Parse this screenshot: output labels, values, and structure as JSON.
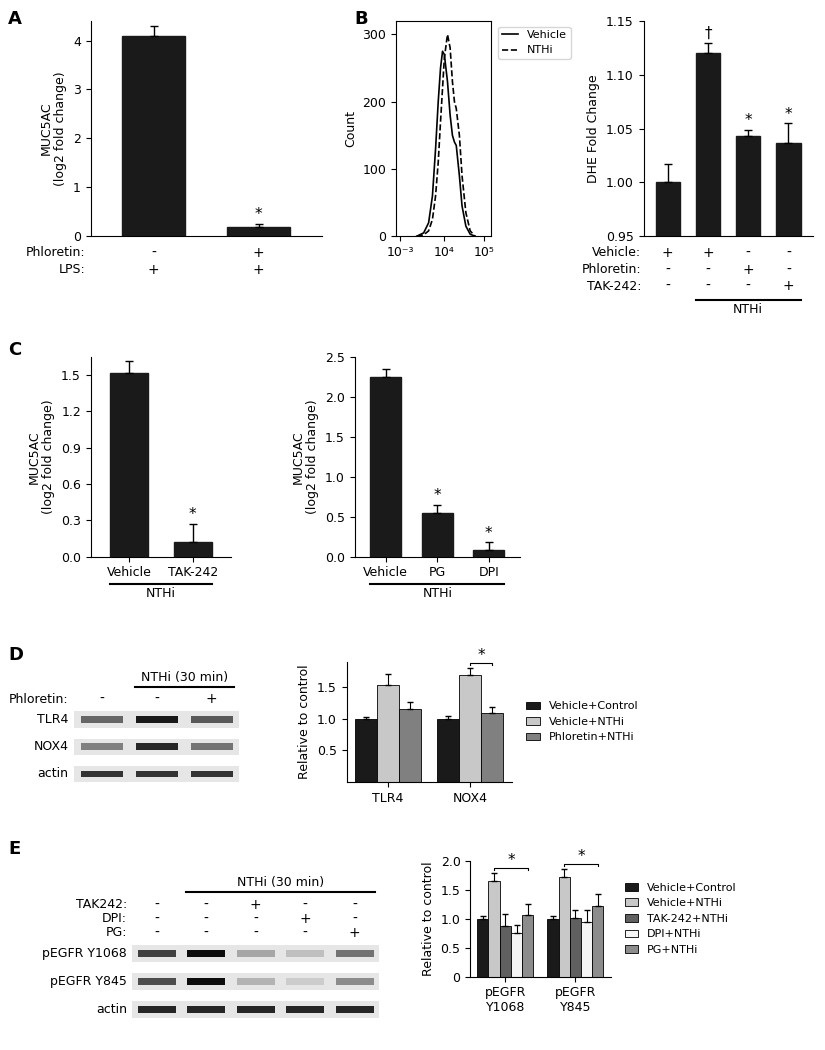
{
  "chart_data": [
    {
      "panel": "A",
      "type": "bar",
      "y_label": "MUC5AC\n(log2 fold change)",
      "values": [
        4.1,
        0.18
      ],
      "errors": [
        0.2,
        0.08
      ],
      "significance": [
        null,
        "*"
      ],
      "color": "#1a1a1a",
      "treatments": [
        {
          "name": "Phloretin:",
          "signs": [
            "-",
            "+"
          ]
        },
        {
          "name": "LPS:",
          "signs": [
            "+",
            "+"
          ]
        }
      ],
      "ylim": [
        0,
        4.4
      ],
      "yticks": [
        0,
        1,
        2,
        3,
        4
      ]
    },
    {
      "panel": "B",
      "type": "line",
      "y_label": "Count",
      "x": [
        2000,
        3000,
        4000,
        5000,
        6000,
        7000,
        8000,
        9000,
        10000,
        12000,
        14000,
        16000,
        18000,
        20000,
        24000,
        28000,
        35000,
        45000,
        60000
      ],
      "series": [
        {
          "name": "Vehicle",
          "color": "#000000",
          "line_style": "solid",
          "values": [
            0,
            5,
            20,
            60,
            130,
            200,
            250,
            275,
            270,
            230,
            180,
            150,
            140,
            135,
            90,
            45,
            15,
            3,
            0
          ]
        },
        {
          "name": "NTHi",
          "color": "#000000",
          "line_style": "dashed",
          "values": [
            0,
            2,
            8,
            25,
            60,
            110,
            170,
            220,
            265,
            300,
            280,
            230,
            200,
            190,
            150,
            90,
            35,
            8,
            0
          ]
        }
      ],
      "log": "x",
      "xlim": [
        -1000,
        150000
      ],
      "xticks": [
        {
          "value": 0.001,
          "label": "10⁻³"
        },
        {
          "value": 10000,
          "label": "10⁴"
        },
        {
          "value": 100000,
          "label": "10⁵"
        }
      ],
      "ylim": [
        0,
        320
      ],
      "yticks": [
        0,
        100,
        200,
        300
      ],
      "legend": "upper left"
    },
    {
      "type": "bar",
      "y_label": "DHE Fold Change",
      "values": [
        1.0,
        1.12,
        1.043,
        1.037
      ],
      "errors": [
        0.017,
        0.01,
        0.006,
        0.018
      ],
      "significance": [
        null,
        "†",
        "*",
        "*"
      ],
      "color": "#1a1a1a",
      "treatments": [
        {
          "name": "Vehicle:",
          "signs": [
            "+",
            "+",
            "-",
            "-"
          ]
        },
        {
          "name": "Phloretin:",
          "signs": [
            "-",
            "-",
            "+",
            "-"
          ]
        },
        {
          "name": "TAK-242:",
          "signs": [
            "-",
            "-",
            "-",
            "+"
          ]
        }
      ],
      "group": {
        "label": "NTHi",
        "members": [
          1,
          2,
          3
        ]
      },
      "ylim": [
        0.95,
        1.15
      ],
      "yticks": [
        {
          "value": 0.95,
          "label": "0.95"
        },
        {
          "value": 1.0,
          "label": "1.00"
        },
        {
          "value": 1.05,
          "label": "1.05"
        },
        {
          "value": 1.1,
          "label": "1.10"
        },
        {
          "value": 1.15,
          "label": "1.15"
        }
      ]
    },
    {
      "panel": "C",
      "type": "bar",
      "y_label": "MUC5AC\n(log2 fold change)",
      "categories": [
        "Vehicle",
        "TAK-242"
      ],
      "values": [
        1.52,
        0.12
      ],
      "errors": [
        0.1,
        0.15
      ],
      "significance": [
        null,
        "*"
      ],
      "color": "#1a1a1a",
      "group": {
        "label": "NTHi",
        "members": [
          0,
          1
        ]
      },
      "ylim": [
        0,
        1.65
      ],
      "yticks": [
        0.0,
        0.3,
        0.6,
        0.9,
        1.2,
        1.5
      ]
    },
    {
      "type": "bar",
      "y_label": "MUC5AC\n(log2 fold change)",
      "categories": [
        "Vehicle",
        "PG",
        "DPI"
      ],
      "values": [
        2.25,
        0.55,
        0.08
      ],
      "errors": [
        0.1,
        0.1,
        0.1
      ],
      "significance": [
        null,
        "*",
        "*"
      ],
      "color": "#1a1a1a",
      "group": {
        "label": "NTHi",
        "members": [
          0,
          1,
          2
        ]
      },
      "ylim": [
        0,
        2.5
      ],
      "yticks": [
        0.0,
        0.5,
        1.0,
        1.5,
        2.0,
        2.5
      ]
    },
    {
      "panel": "D",
      "type": "blot",
      "group": {
        "label": "NTHi (30 min)",
        "members": [
          1,
          2
        ]
      },
      "treatments": [
        {
          "name": "Phloretin:",
          "signs": [
            "-",
            "-",
            "+"
          ]
        }
      ],
      "rows": [
        {
          "name": "TLR4",
          "intensity": [
            0.6,
            0.9,
            0.65
          ]
        },
        {
          "name": "NOX4",
          "intensity": [
            0.5,
            0.85,
            0.55
          ]
        },
        {
          "name": "actin",
          "intensity": [
            0.8,
            0.8,
            0.8
          ]
        }
      ]
    },
    {
      "type": "bar",
      "y_label": "Relative to control",
      "categories": [
        "TLR4",
        "NOX4"
      ],
      "series": [
        {
          "name": "Vehicle+Control",
          "color": "#1a1a1a",
          "values": [
            1.0,
            1.0
          ],
          "errors": [
            0.02,
            0.05
          ]
        },
        {
          "name": "Vehicle+NTHi",
          "color": "#c8c8c8",
          "values": [
            1.53,
            1.68
          ],
          "errors": [
            0.18,
            0.12
          ]
        },
        {
          "name": "Phloretin+NTHi",
          "color": "#808080",
          "values": [
            1.16,
            1.09
          ],
          "errors": [
            0.1,
            0.09
          ]
        }
      ],
      "brackets": [
        {
          "category": "NOX4",
          "from": "Vehicle+NTHi",
          "to": "Phloretin+NTHi",
          "label": "*"
        }
      ],
      "ylim": [
        0,
        1.9
      ],
      "yticks": [
        0.5,
        1.0,
        1.5
      ],
      "legend": "center left"
    },
    {
      "panel": "E",
      "type": "blot",
      "group": {
        "label": "NTHi (30 min)",
        "members": [
          1,
          2,
          3,
          4
        ]
      },
      "treatments": [
        {
          "name": "TAK242:",
          "signs": [
            "-",
            "-",
            "+",
            "-",
            "-"
          ]
        },
        {
          "name": "DPI:",
          "signs": [
            "-",
            "-",
            "-",
            "+",
            "-"
          ]
        },
        {
          "name": "PG:",
          "signs": [
            "-",
            "-",
            "-",
            "-",
            "+"
          ]
        }
      ],
      "rows": [
        {
          "name": "pEGFR Y1068",
          "intensity": [
            0.75,
            0.95,
            0.35,
            0.25,
            0.55
          ]
        },
        {
          "name": "pEGFR Y845",
          "intensity": [
            0.7,
            0.95,
            0.3,
            0.2,
            0.45
          ]
        },
        {
          "name": "actin",
          "intensity": [
            0.85,
            0.85,
            0.85,
            0.85,
            0.85
          ]
        }
      ]
    },
    {
      "type": "bar",
      "y_label": "Relative to control",
      "categories": [
        "pEGFR\nY1068",
        "pEGFR\nY845"
      ],
      "series": [
        {
          "name": "Vehicle+Control",
          "color": "#1a1a1a",
          "values": [
            1.0,
            1.0
          ],
          "errors": [
            0.05,
            0.05
          ]
        },
        {
          "name": "Vehicle+NTHi",
          "color": "#c8c8c8",
          "values": [
            1.65,
            1.72
          ],
          "errors": [
            0.15,
            0.15
          ]
        },
        {
          "name": "TAK-242+NTHi",
          "color": "#606060",
          "values": [
            0.88,
            1.01
          ],
          "errors": [
            0.2,
            0.15
          ]
        },
        {
          "name": "DPI+NTHi",
          "color": "#f5f5f5",
          "values": [
            0.75,
            0.95
          ],
          "errors": [
            0.15,
            0.2
          ]
        },
        {
          "name": "PG+NTHi",
          "color": "#8c8c8c",
          "values": [
            1.07,
            1.22
          ],
          "errors": [
            0.18,
            0.2
          ]
        }
      ],
      "brackets": [
        {
          "category": "pEGFR\nY1068",
          "from": "Vehicle+NTHi",
          "to": "PG+NTHi",
          "label": "*"
        },
        {
          "category": "pEGFR\nY845",
          "from": "Vehicle+NTHi",
          "to": "PG+NTHi",
          "label": "*"
        }
      ],
      "ylim": [
        0,
        2.0
      ],
      "yticks": [
        0,
        0.5,
        1.0,
        1.5,
        2.0
      ],
      "legend": "center left"
    }
  ]
}
